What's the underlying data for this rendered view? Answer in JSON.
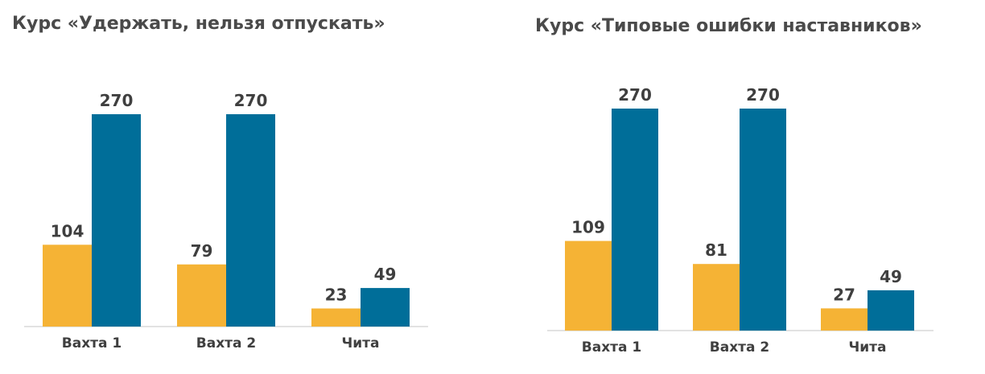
{
  "colors": {
    "series_a": "#F5B335",
    "series_b": "#006E99",
    "axis": "#D9D9D9",
    "text": "#3f3f3f"
  },
  "chart_data": [
    {
      "type": "bar",
      "title": "Курс «Удержать, нельзя отпускать»",
      "categories": [
        "Вахта 1",
        "Вахта 2",
        "Чита"
      ],
      "series": [
        {
          "values": [
            104,
            79,
            23
          ]
        },
        {
          "values": [
            270,
            270,
            49
          ]
        }
      ],
      "ylim": [
        0,
        270
      ],
      "grid": false,
      "legend": "none"
    },
    {
      "type": "bar",
      "title": "Курс «Типовые ошибки наставников»",
      "categories": [
        "Вахта 1",
        "Вахта 2",
        "Чита"
      ],
      "series": [
        {
          "values": [
            109,
            81,
            27
          ]
        },
        {
          "values": [
            270,
            270,
            49
          ]
        }
      ],
      "ylim": [
        0,
        270
      ],
      "grid": false,
      "legend": "none"
    }
  ]
}
